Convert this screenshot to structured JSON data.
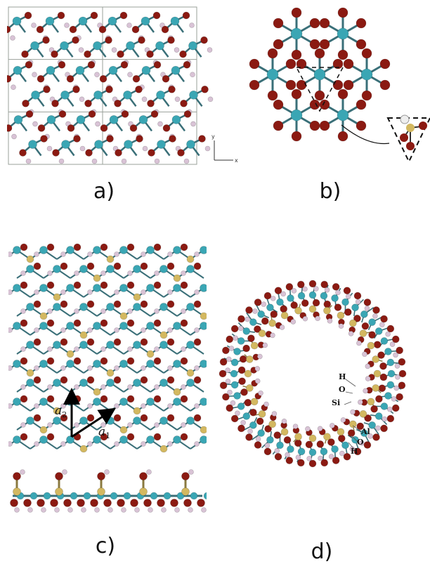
{
  "labels": {
    "a": "a)",
    "b": "b)",
    "c": "c)",
    "d": "d)"
  },
  "axes": {
    "x": "x",
    "y": "y"
  },
  "vectors": {
    "a1_base": "a",
    "a1_sub": "1",
    "a2_base": "a",
    "a2_sub": "2"
  },
  "tube_labels": {
    "h_inner": "H",
    "o_inner": "O",
    "si": "Si",
    "al": "Al",
    "o_outer": "O",
    "h_outer": "H"
  },
  "colors": {
    "al": "#3aa6b4",
    "o": "#8b1a12",
    "h": "#d9c3d6",
    "si": "#d3b860",
    "bond": "#3a3a3a",
    "grid": "#9aa09a"
  }
}
